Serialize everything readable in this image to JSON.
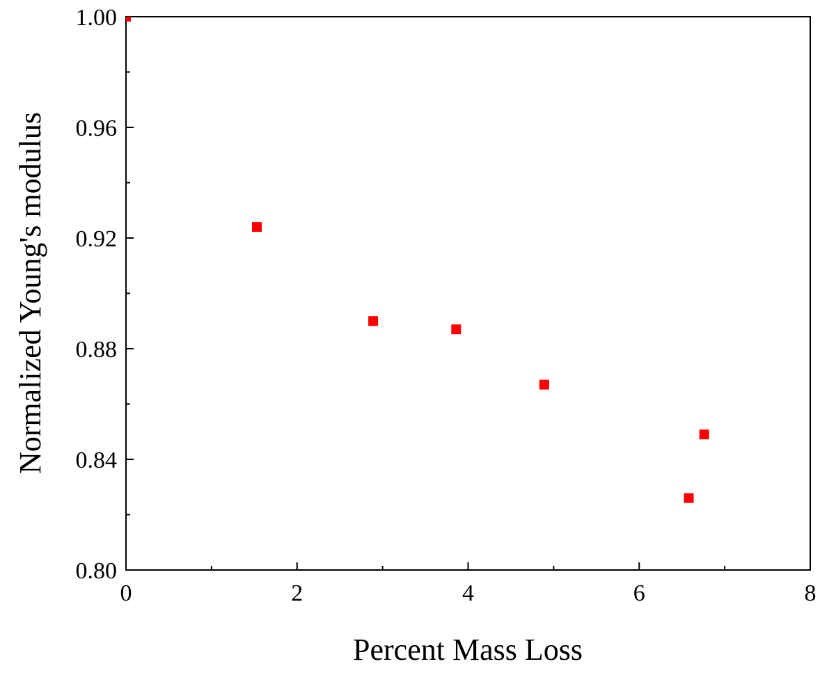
{
  "chart_data": {
    "type": "scatter",
    "title": "",
    "xlabel": "Percent Mass Loss",
    "ylabel": "Normalized Young's modulus",
    "xlim": [
      0,
      8
    ],
    "ylim": [
      0.8,
      1.0
    ],
    "x_ticks": [
      "0",
      "2",
      "4",
      "6",
      "8"
    ],
    "y_ticks": [
      "0.80",
      "0.84",
      "0.88",
      "0.92",
      "0.96",
      "1.00"
    ],
    "grid": false,
    "legend": "none",
    "marker": "square",
    "color": "#ff0000",
    "series": [
      {
        "points": [
          {
            "x": 0.0,
            "y": 1.0
          },
          {
            "x": 1.53,
            "y": 0.924
          },
          {
            "x": 2.89,
            "y": 0.89
          },
          {
            "x": 3.86,
            "y": 0.887
          },
          {
            "x": 4.89,
            "y": 0.867
          },
          {
            "x": 6.58,
            "y": 0.826
          },
          {
            "x": 6.76,
            "y": 0.849
          }
        ]
      }
    ]
  }
}
